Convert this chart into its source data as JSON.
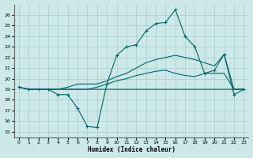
{
  "xlabel": "Humidex (Indice chaleur)",
  "bg_color": "#cce8e8",
  "grid_color": "#aacccc",
  "line_color": "#006666",
  "xlim": [
    -0.5,
    23.5
  ],
  "ylim": [
    14.5,
    27.0
  ],
  "yticks": [
    15,
    16,
    17,
    18,
    19,
    20,
    21,
    22,
    23,
    24,
    25,
    26
  ],
  "xticks": [
    0,
    1,
    2,
    3,
    4,
    5,
    6,
    7,
    8,
    9,
    10,
    11,
    12,
    13,
    14,
    15,
    16,
    17,
    18,
    19,
    20,
    21,
    22,
    23
  ],
  "line1": {
    "x": [
      0,
      1,
      2,
      3,
      4,
      5,
      6,
      7,
      8,
      9,
      10,
      11,
      12,
      13,
      14,
      15,
      16,
      17,
      18,
      19,
      20,
      21,
      22,
      23
    ],
    "y": [
      19.2,
      19.0,
      19.0,
      19.0,
      19.0,
      19.0,
      19.0,
      19.0,
      19.0,
      19.0,
      19.0,
      19.0,
      19.0,
      19.0,
      19.0,
      19.0,
      19.0,
      19.0,
      19.0,
      19.0,
      19.0,
      19.0,
      19.0,
      19.0
    ],
    "marker": false
  },
  "line2": {
    "x": [
      0,
      1,
      2,
      3,
      4,
      5,
      6,
      7,
      8,
      9,
      10,
      11,
      12,
      13,
      14,
      15,
      16,
      17,
      18,
      19,
      20,
      21,
      22,
      23
    ],
    "y": [
      19.2,
      19.0,
      19.0,
      19.0,
      18.5,
      18.5,
      17.2,
      15.5,
      15.4,
      19.5,
      22.2,
      23.0,
      23.2,
      24.5,
      25.2,
      25.3,
      26.5,
      24.0,
      23.0,
      20.5,
      20.8,
      22.3,
      18.5,
      19.0
    ],
    "marker": true
  },
  "line3": {
    "x": [
      0,
      1,
      2,
      3,
      4,
      5,
      6,
      7,
      8,
      9,
      10,
      11,
      12,
      13,
      14,
      15,
      16,
      17,
      18,
      19,
      20,
      21,
      22,
      23
    ],
    "y": [
      19.2,
      19.0,
      19.0,
      19.0,
      19.0,
      19.2,
      19.5,
      19.5,
      19.5,
      19.8,
      20.2,
      20.5,
      21.0,
      21.5,
      21.8,
      22.0,
      22.2,
      22.0,
      21.8,
      21.5,
      21.2,
      22.3,
      19.0,
      19.0
    ],
    "marker": false
  },
  "line4": {
    "x": [
      0,
      1,
      2,
      3,
      4,
      5,
      6,
      7,
      8,
      9,
      10,
      11,
      12,
      13,
      14,
      15,
      16,
      17,
      18,
      19,
      20,
      21,
      22,
      23
    ],
    "y": [
      19.2,
      19.0,
      19.0,
      19.0,
      19.0,
      19.0,
      19.0,
      19.0,
      19.2,
      19.5,
      19.8,
      20.0,
      20.3,
      20.5,
      20.7,
      20.8,
      20.5,
      20.3,
      20.2,
      20.5,
      20.5,
      20.5,
      19.0,
      19.0
    ],
    "marker": false
  }
}
